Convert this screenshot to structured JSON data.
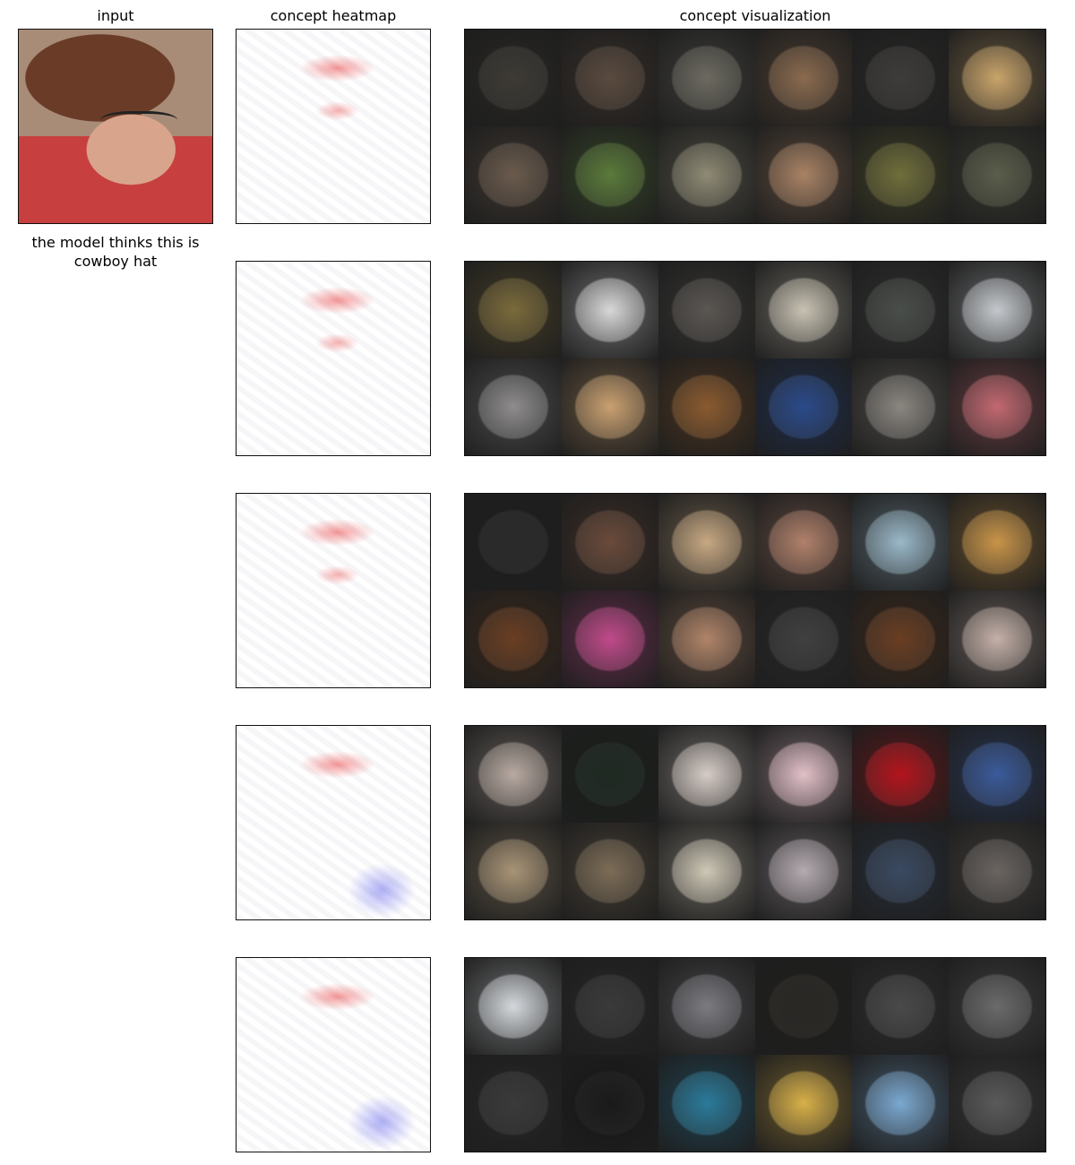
{
  "titles": {
    "input": "input",
    "heatmap": "concept heatmap",
    "visualization": "concept visualization"
  },
  "caption": "the model thinks this is\ncowboy hat",
  "concept_rows": [
    {
      "heatmap_color": "red",
      "tiles": [
        "#3d3a34",
        "#5a4a3e",
        "#6c6a60",
        "#8a6a4e",
        "#3e3c3a",
        "#c9a46a",
        "#6a5a4c",
        "#5a7a3a",
        "#8e8a74",
        "#a88264",
        "#6f6e3a",
        "#5a5e4a"
      ]
    },
    {
      "heatmap_color": "red",
      "tiles": [
        "#7a6a3a",
        "#d8d8d8",
        "#5a5652",
        "#c8c2b2",
        "#4a4e4a",
        "#c4c8cc",
        "#8e8c8c",
        "#c9a070",
        "#8a5a2e",
        "#2a4a8a",
        "#8a8680",
        "#c26870"
      ]
    },
    {
      "heatmap_color": "red",
      "tiles": [
        "#2a2a2a",
        "#6a4a3a",
        "#c7a882",
        "#b0806a",
        "#9ab8c8",
        "#c89448",
        "#6a3e22",
        "#c04a8a",
        "#b08468",
        "#404040",
        "#6a3e22",
        "#c4b0a8"
      ]
    },
    {
      "heatmap_color": "red",
      "tiles": [
        "#b8aaa2",
        "#1e2a22",
        "#d6ccc6",
        "#e2c0c8",
        "#b4141c",
        "#3a5a9a",
        "#a89476",
        "#7c6c56",
        "#cfc8b6",
        "#b4aab0",
        "#3a4a62",
        "#6a6460"
      ]
    },
    {
      "heatmap_color": "red-blue",
      "tiles": [
        "#d4d8dc",
        "#3a3a3a",
        "#7a7a80",
        "#2a2824",
        "#4a4a4a",
        "#6a6a6a",
        "#3a3a3a",
        "#1a1a1a",
        "#2a7a9a",
        "#d8b048",
        "#7aa8d0",
        "#5a5a5a"
      ]
    }
  ]
}
